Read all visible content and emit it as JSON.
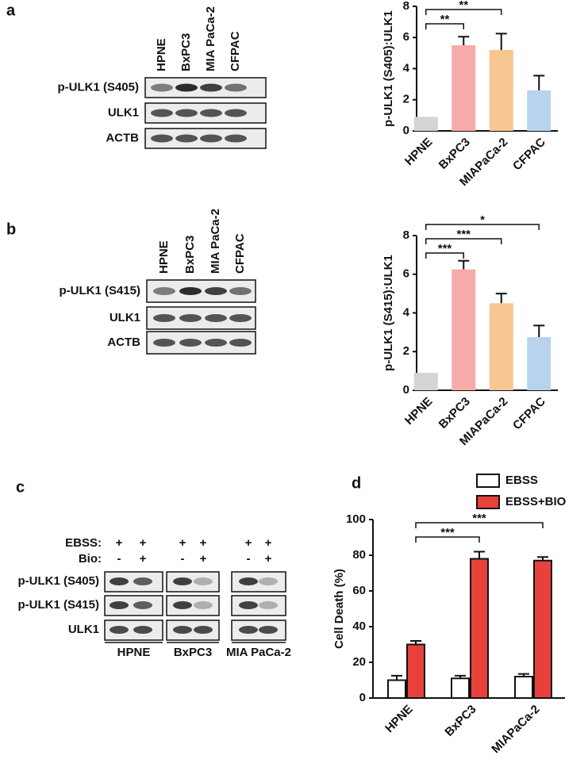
{
  "panel_labels": [
    "a",
    "b",
    "c",
    "d"
  ],
  "blots": [
    {
      "lanes": [
        "HPNE",
        "BxPC3",
        "MIA PaCa-2",
        "CFPAC"
      ],
      "rows": [
        "p-ULK1 (S405)",
        "ULK1",
        "ACTB"
      ]
    },
    {
      "lanes": [
        "HPNE",
        "BxPC3",
        "MIA PaCa-2",
        "CFPAC"
      ],
      "rows": [
        "p-ULK1 (S415)",
        "ULK1",
        "ACTB"
      ]
    },
    {
      "conditions": [
        {
          "name": "EBSS:",
          "signs": [
            "+",
            "+",
            "+",
            "+",
            "+",
            "+"
          ]
        },
        {
          "name": "Bio:",
          "signs": [
            "-",
            "+",
            "-",
            "+",
            "-",
            "+"
          ]
        }
      ],
      "rows": [
        "p-ULK1 (S405)",
        "p-ULK1 (S415)",
        "ULK1"
      ],
      "groups": [
        "HPNE",
        "BxPC3",
        "MIA PaCa-2"
      ]
    }
  ],
  "chart_data": [
    {
      "type": "bar",
      "ylabel": "p-ULK1 (S405):ULK1",
      "categories": [
        "HPNE",
        "BxPC3",
        "MIAPaCa-2",
        "CFPAC"
      ],
      "values": [
        0.9,
        5.5,
        5.2,
        2.6
      ],
      "errors": [
        null,
        0.55,
        1.05,
        0.95
      ],
      "colors": [
        "#d4d4d4",
        "#f6abab",
        "#f8c690",
        "#b9d3ec"
      ],
      "ylim": [
        0,
        8
      ],
      "yticks": [
        0,
        2,
        4,
        6,
        8
      ],
      "annotations": [
        {
          "text": "**",
          "between": [
            "HPNE",
            "BxPC3"
          ]
        },
        {
          "text": "**",
          "between": [
            "HPNE",
            "MIAPaCa-2"
          ]
        }
      ]
    },
    {
      "type": "bar",
      "ylabel": "p-ULK1 (S415):ULK1",
      "categories": [
        "HPNE",
        "BxPC3",
        "MIAPaCa-2",
        "CFPAC"
      ],
      "values": [
        0.9,
        6.25,
        4.5,
        2.75
      ],
      "errors": [
        null,
        0.45,
        0.5,
        0.6
      ],
      "colors": [
        "#d4d4d4",
        "#f6abab",
        "#f8c690",
        "#b9d3ec"
      ],
      "ylim": [
        0,
        8
      ],
      "yticks": [
        0,
        2,
        4,
        6,
        8
      ],
      "annotations": [
        {
          "text": "***",
          "between": [
            "HPNE",
            "BxPC3"
          ]
        },
        {
          "text": "***",
          "between": [
            "HPNE",
            "MIAPaCa-2"
          ]
        },
        {
          "text": "*",
          "between": [
            "HPNE",
            "CFPAC"
          ]
        }
      ]
    },
    {
      "type": "grouped_bar",
      "ylabel": "Cell Death (%)",
      "categories": [
        "HPNE",
        "BxPC3",
        "MIAPaCa-2"
      ],
      "series": [
        {
          "name": "EBSS",
          "color": "#ffffff",
          "values": [
            10,
            11,
            12
          ],
          "errors": [
            2.5,
            1.5,
            1.5
          ]
        },
        {
          "name": "EBSS+BIO",
          "color": "#e8413c",
          "values": [
            30,
            78,
            77
          ],
          "errors": [
            2,
            4,
            2
          ]
        }
      ],
      "ylim": [
        0,
        100
      ],
      "yticks": [
        0,
        20,
        40,
        60,
        80,
        100
      ],
      "legend": "top",
      "annotations": [
        {
          "text": "***",
          "between": [
            "HPNE",
            "BxPC3"
          ]
        },
        {
          "text": "***",
          "between": [
            "HPNE",
            "MIAPaCa-2"
          ]
        }
      ]
    }
  ]
}
